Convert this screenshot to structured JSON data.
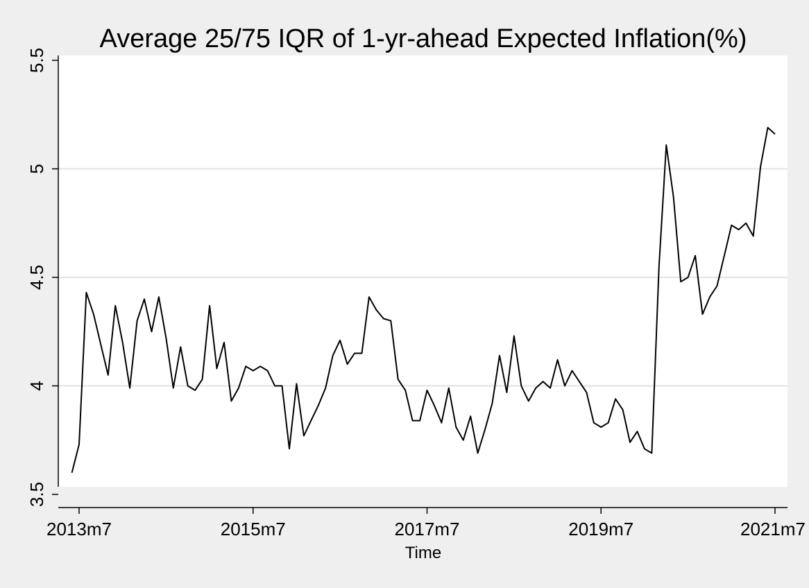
{
  "chart_data": {
    "type": "line",
    "title": "Average 25/75 IQR of 1-yr-ahead Expected Inflation(%)",
    "xlabel": "Time",
    "ylabel": "",
    "xlim": [
      "2013m6",
      "2021m7"
    ],
    "ylim": [
      3.5,
      5.5
    ],
    "yticks": [
      "3.5",
      "4",
      "4.5",
      "5",
      "5.5"
    ],
    "xticks": [
      "2013m7",
      "2015m7",
      "2017m7",
      "2019m7",
      "2021m7"
    ],
    "grid": "horizontal",
    "legend": "none",
    "colors": {
      "line": "#000000",
      "plot_bg": "#ffffff",
      "page_bg": "#efefef",
      "grid": "#e3e3e3"
    },
    "series": [
      {
        "x": [
          "2013m6",
          "2013m7",
          "2013m8",
          "2013m9",
          "2013m10",
          "2013m11",
          "2013m12",
          "2014m1",
          "2014m2",
          "2014m3",
          "2014m4",
          "2014m5",
          "2014m6",
          "2014m7",
          "2014m8",
          "2014m9",
          "2014m10",
          "2014m11",
          "2014m12",
          "2015m1",
          "2015m2",
          "2015m3",
          "2015m4",
          "2015m5",
          "2015m6",
          "2015m7",
          "2015m8",
          "2015m9",
          "2015m10",
          "2015m11",
          "2015m12",
          "2016m1",
          "2016m2",
          "2016m3",
          "2016m4",
          "2016m5",
          "2016m6",
          "2016m7",
          "2016m8",
          "2016m9",
          "2016m10",
          "2016m11",
          "2016m12",
          "2017m1",
          "2017m2",
          "2017m3",
          "2017m4",
          "2017m5",
          "2017m6",
          "2017m7",
          "2017m8",
          "2017m9",
          "2017m10",
          "2017m11",
          "2017m12",
          "2018m1",
          "2018m2",
          "2018m3",
          "2018m4",
          "2018m5",
          "2018m6",
          "2018m7",
          "2018m8",
          "2018m9",
          "2018m10",
          "2018m11",
          "2018m12",
          "2019m1",
          "2019m2",
          "2019m3",
          "2019m4",
          "2019m5",
          "2019m6",
          "2019m7",
          "2019m8",
          "2019m9",
          "2019m10",
          "2019m11",
          "2019m12",
          "2020m1",
          "2020m2",
          "2020m3",
          "2020m4",
          "2020m5",
          "2020m6",
          "2020m7",
          "2020m8",
          "2020m9",
          "2020m10",
          "2020m11",
          "2020m12",
          "2021m1",
          "2021m2",
          "2021m3",
          "2021m4",
          "2021m5",
          "2021m6",
          "2021m7"
        ],
        "values": [
          3.6,
          3.73,
          4.43,
          4.33,
          4.19,
          4.05,
          4.37,
          4.2,
          3.99,
          4.3,
          4.4,
          4.25,
          4.41,
          4.22,
          3.99,
          4.18,
          4.0,
          3.98,
          4.03,
          4.37,
          4.08,
          4.2,
          3.93,
          3.99,
          4.09,
          4.07,
          4.09,
          4.07,
          4.0,
          4.0,
          3.71,
          4.01,
          3.77,
          3.84,
          3.91,
          3.99,
          4.14,
          4.21,
          4.1,
          4.15,
          4.15,
          4.41,
          4.35,
          4.31,
          4.3,
          4.03,
          3.98,
          3.84,
          3.84,
          3.98,
          3.91,
          3.83,
          3.99,
          3.81,
          3.75,
          3.86,
          3.69,
          3.8,
          3.92,
          4.14,
          3.97,
          4.23,
          4.0,
          3.93,
          3.99,
          4.02,
          3.99,
          4.12,
          4.0,
          4.07,
          4.02,
          3.97,
          3.83,
          3.81,
          3.83,
          3.94,
          3.89,
          3.74,
          3.79,
          3.71,
          3.69,
          4.55,
          5.11,
          4.87,
          4.48,
          4.5,
          4.6,
          4.33,
          4.41,
          4.46,
          4.6,
          4.74,
          4.72,
          4.75,
          4.69,
          5.01,
          5.19,
          5.16
        ]
      }
    ]
  }
}
